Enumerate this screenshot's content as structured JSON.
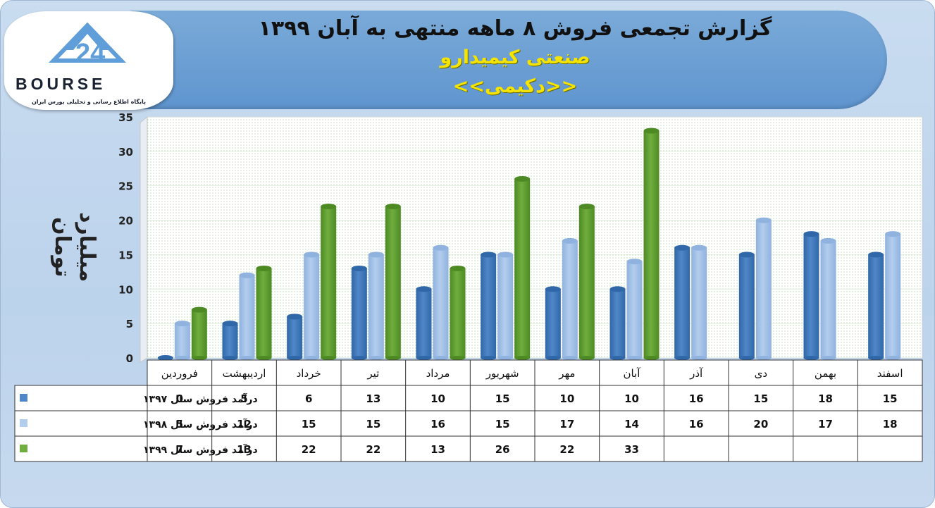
{
  "header": {
    "title": "گزارش تجمعی فروش ۸ ماهه منتهی به آبان ۱۳۹۹",
    "industry": "صنعتی کیمیدارو",
    "symbol": "<<دکیمی>>"
  },
  "logo": {
    "brand": "BOURSE",
    "tagline": "پایگاه اطلاع رسانی و تحلیلی بورس ایران"
  },
  "colors": {
    "series_1397": "#4f87c8",
    "series_1398": "#b3cdee",
    "series_1399": "#6fae3e",
    "banner": "#6a9fd5",
    "subtitle": "#f5e400"
  },
  "chart_data": {
    "type": "bar",
    "title": "گزارش تجمعی فروش ۸ ماهه منتهی به آبان ۱۳۹۹",
    "ylabel": "میلیارد تومان",
    "ylim": [
      0,
      35
    ],
    "yticks": [
      0,
      5,
      10,
      15,
      20,
      25,
      30,
      35
    ],
    "grid": true,
    "categories": [
      "فروردین",
      "اردیبهشت",
      "خرداد",
      "تیر",
      "مرداد",
      "شهریور",
      "مهر",
      "آبان",
      "آذر",
      "دی",
      "بهمن",
      "اسفند"
    ],
    "series": [
      {
        "name": "درآمد فروش سال ۱۳۹۷",
        "values": [
          0,
          5,
          6,
          13,
          10,
          15,
          10,
          10,
          16,
          15,
          18,
          15
        ]
      },
      {
        "name": "درآمد فروش سال ۱۳۹۸",
        "values": [
          5,
          12,
          15,
          15,
          16,
          15,
          17,
          14,
          16,
          20,
          17,
          18
        ]
      },
      {
        "name": "درآمد فروش سال ۱۳۹۹",
        "values": [
          7,
          13,
          22,
          22,
          13,
          26,
          22,
          33,
          null,
          null,
          null,
          null
        ]
      }
    ]
  }
}
